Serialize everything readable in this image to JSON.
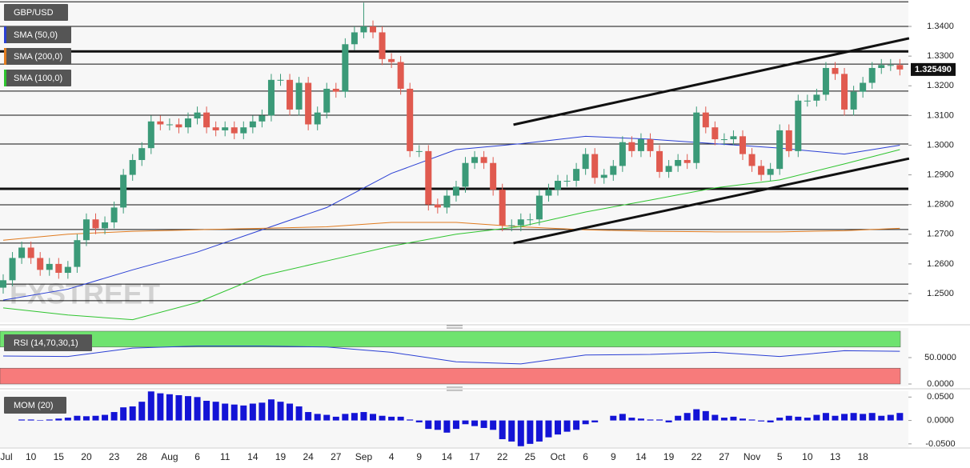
{
  "chart_data": [
    {
      "type": "candlestick",
      "title": "GBP/USD",
      "watermark": "FXSTREET",
      "categories": [
        "Jul",
        null,
        null,
        "10",
        null,
        null,
        "15",
        null,
        null,
        "20",
        null,
        null,
        "23",
        null,
        null,
        "28",
        null,
        null,
        "Aug",
        null,
        null,
        "6",
        null,
        null,
        "11",
        null,
        null,
        "14",
        null,
        null,
        "19",
        null,
        null,
        "24",
        null,
        null,
        "27",
        null,
        null,
        "Sep",
        null,
        null,
        "4",
        null,
        null,
        "9",
        null,
        null,
        "14",
        null,
        null,
        "17",
        null,
        null,
        "22",
        null,
        null,
        "25",
        null,
        null,
        "Oct",
        null,
        null,
        "6",
        null,
        null,
        "9",
        null,
        null,
        "14",
        null,
        null,
        "19",
        null,
        null,
        "22",
        null,
        null,
        "27",
        null,
        null,
        "Nov",
        null,
        null,
        "5",
        null,
        null,
        "10",
        null,
        null,
        "13",
        null,
        null,
        "18",
        null,
        null,
        null,
        null
      ],
      "open": [
        1.252,
        1.2545,
        1.262,
        1.2655,
        1.262,
        1.258,
        1.26,
        1.257,
        1.259,
        1.268,
        1.275,
        1.272,
        1.274,
        1.279,
        1.29,
        1.295,
        1.299,
        1.308,
        1.307,
        1.307,
        1.306,
        1.309,
        1.311,
        1.306,
        1.305,
        1.306,
        1.304,
        1.306,
        1.308,
        1.31,
        1.322,
        1.322,
        1.312,
        1.321,
        1.307,
        1.311,
        1.319,
        1.318,
        1.334,
        1.338,
        1.34,
        1.338,
        1.329,
        1.328,
        1.319,
        1.298,
        1.298,
        1.28,
        1.279,
        1.283,
        1.286,
        1.294,
        1.296,
        1.294,
        1.285,
        1.273,
        1.273,
        1.275,
        1.275,
        1.283,
        1.285,
        1.288,
        1.288,
        1.292,
        1.297,
        1.289,
        1.29,
        1.293,
        1.301,
        1.298,
        1.302,
        1.298,
        1.291,
        1.293,
        1.295,
        1.294,
        1.311,
        1.306,
        1.302,
        1.302,
        1.303,
        1.297,
        1.293,
        1.29,
        1.292,
        1.305,
        1.298,
        1.315,
        1.315,
        1.317,
        1.326,
        1.324,
        1.312,
        1.318,
        1.321,
        1.326,
        1.327,
        1.327
      ],
      "high": [
        1.2565,
        1.264,
        1.2675,
        1.2675,
        1.264,
        1.262,
        1.262,
        1.261,
        1.27,
        1.277,
        1.277,
        1.276,
        1.281,
        1.292,
        1.297,
        1.301,
        1.31,
        1.31,
        1.309,
        1.309,
        1.311,
        1.313,
        1.313,
        1.308,
        1.308,
        1.308,
        1.308,
        1.31,
        1.312,
        1.324,
        1.324,
        1.324,
        1.323,
        1.323,
        1.313,
        1.321,
        1.321,
        1.336,
        1.34,
        1.348,
        1.342,
        1.34,
        1.331,
        1.33,
        1.321,
        1.3,
        1.3,
        1.282,
        1.285,
        1.288,
        1.296,
        1.298,
        1.298,
        1.296,
        1.287,
        1.275,
        1.277,
        1.277,
        1.285,
        1.287,
        1.29,
        1.29,
        1.294,
        1.299,
        1.299,
        1.292,
        1.295,
        1.303,
        1.303,
        1.304,
        1.304,
        1.3,
        1.295,
        1.297,
        1.297,
        1.313,
        1.313,
        1.308,
        1.304,
        1.305,
        1.305,
        1.299,
        1.295,
        1.294,
        1.307,
        1.307,
        1.317,
        1.317,
        1.319,
        1.328,
        1.328,
        1.326,
        1.32,
        1.323,
        1.328,
        1.329,
        1.329,
        1.329
      ],
      "low": [
        1.25,
        1.2525,
        1.26,
        1.26,
        1.256,
        1.256,
        1.255,
        1.255,
        1.257,
        1.266,
        1.27,
        1.27,
        1.272,
        1.277,
        1.288,
        1.293,
        1.297,
        1.305,
        1.305,
        1.304,
        1.304,
        1.307,
        1.304,
        1.303,
        1.303,
        1.302,
        1.302,
        1.304,
        1.306,
        1.308,
        1.32,
        1.31,
        1.31,
        1.305,
        1.305,
        1.309,
        1.316,
        1.316,
        1.332,
        1.336,
        1.336,
        1.327,
        1.326,
        1.317,
        1.296,
        1.296,
        1.278,
        1.277,
        1.277,
        1.281,
        1.284,
        1.292,
        1.292,
        1.283,
        1.271,
        1.271,
        1.271,
        1.273,
        1.273,
        1.281,
        1.283,
        1.286,
        1.286,
        1.29,
        1.287,
        1.287,
        1.288,
        1.291,
        1.296,
        1.296,
        1.296,
        1.289,
        1.289,
        1.291,
        1.292,
        1.292,
        1.304,
        1.3,
        1.3,
        1.3,
        1.295,
        1.291,
        1.288,
        1.288,
        1.29,
        1.296,
        1.296,
        1.313,
        1.313,
        1.315,
        1.322,
        1.31,
        1.31,
        1.316,
        1.319,
        1.324,
        1.325,
        1.3235
      ],
      "close": [
        1.2545,
        1.262,
        1.2655,
        1.262,
        1.258,
        1.26,
        1.257,
        1.259,
        1.268,
        1.275,
        1.272,
        1.274,
        1.279,
        1.29,
        1.295,
        1.299,
        1.308,
        1.307,
        1.307,
        1.306,
        1.309,
        1.311,
        1.306,
        1.305,
        1.306,
        1.304,
        1.306,
        1.308,
        1.31,
        1.322,
        1.322,
        1.312,
        1.321,
        1.307,
        1.311,
        1.319,
        1.318,
        1.334,
        1.338,
        1.34,
        1.338,
        1.329,
        1.328,
        1.319,
        1.298,
        1.298,
        1.28,
        1.279,
        1.283,
        1.286,
        1.294,
        1.296,
        1.294,
        1.285,
        1.273,
        1.273,
        1.275,
        1.275,
        1.283,
        1.285,
        1.288,
        1.288,
        1.292,
        1.297,
        1.289,
        1.29,
        1.293,
        1.301,
        1.298,
        1.302,
        1.298,
        1.291,
        1.293,
        1.295,
        1.294,
        1.311,
        1.306,
        1.302,
        1.302,
        1.303,
        1.297,
        1.293,
        1.29,
        1.292,
        1.305,
        1.298,
        1.315,
        1.315,
        1.317,
        1.326,
        1.324,
        1.312,
        1.318,
        1.321,
        1.326,
        1.327,
        1.327,
        1.3255
      ],
      "up_color": "#3b9a78",
      "down_color": "#e05a4f",
      "series": [
        {
          "name": "SMA (50,0)",
          "color": "#2a3fd4",
          "x": [
            0,
            7,
            14,
            21,
            28,
            35,
            42,
            49,
            56,
            63,
            70,
            77,
            84,
            91,
            97
          ],
          "values": [
            1.2478,
            1.2515,
            1.258,
            1.264,
            1.2715,
            1.279,
            1.2905,
            1.2985,
            1.3005,
            1.303,
            1.302,
            1.3005,
            1.299,
            1.297,
            1.3
          ]
        },
        {
          "name": "SMA (200,0)",
          "color": "#e07b1f",
          "x": [
            0,
            7,
            14,
            21,
            28,
            35,
            42,
            49,
            56,
            63,
            70,
            77,
            84,
            91,
            97
          ],
          "values": [
            1.268,
            1.27,
            1.271,
            1.2715,
            1.272,
            1.2725,
            1.274,
            1.274,
            1.2725,
            1.2715,
            1.271,
            1.2708,
            1.2708,
            1.2712,
            1.272
          ]
        },
        {
          "name": "SMA (100,0)",
          "color": "#2fc42f",
          "x": [
            0,
            7,
            14,
            21,
            28,
            35,
            42,
            49,
            56,
            63,
            70,
            77,
            84,
            91,
            97
          ],
          "values": [
            1.2452,
            1.2428,
            1.2412,
            1.247,
            1.256,
            1.261,
            1.266,
            1.27,
            1.2726,
            1.2775,
            1.2815,
            1.2856,
            1.2883,
            1.2937,
            1.2985
          ]
        }
      ],
      "levels": [
        1.3483,
        1.34,
        1.3273,
        1.3182,
        1.3101,
        1.3004,
        1.2799,
        1.2716,
        1.267,
        1.2532,
        1.2476
      ],
      "major_levels": [
        1.3316,
        1.2853
      ],
      "trendlines": [
        {
          "x": [
            55.2,
            98
          ],
          "y": [
            1.3069,
            1.336
          ]
        },
        {
          "x": [
            55.2,
            98
          ],
          "y": [
            1.267,
            1.2955
          ]
        }
      ],
      "last": {
        "value": 1.32549,
        "label": "1.325490"
      },
      "ylim": [
        1.2403,
        1.3489
      ],
      "yticks": [
        {
          "value": 1.34,
          "label": "1.3400"
        },
        {
          "value": 1.33,
          "label": "1.3300"
        },
        {
          "value": 1.32,
          "label": "1.3200"
        },
        {
          "value": 1.31,
          "label": "1.3100"
        },
        {
          "value": 1.3,
          "label": "1.3000"
        },
        {
          "value": 1.29,
          "label": "1.2900"
        },
        {
          "value": 1.28,
          "label": "1.2800"
        },
        {
          "value": 1.27,
          "label": "1.2700"
        },
        {
          "value": 1.26,
          "label": "1.2600"
        },
        {
          "value": 1.25,
          "label": "1.2500"
        }
      ]
    },
    {
      "type": "line",
      "title": "RSI (14,70,30,1)",
      "color": "#2a3fd4",
      "x": [
        0,
        7,
        14,
        21,
        28,
        35,
        42,
        49,
        56,
        63,
        70,
        77,
        84,
        91,
        97
      ],
      "values": [
        53,
        52,
        68,
        72,
        72,
        70,
        60,
        42,
        38,
        55,
        56,
        60,
        52,
        63,
        62
      ],
      "bands": [
        {
          "from": 70,
          "to": 100,
          "color": "#6fe36f"
        },
        {
          "from": 0,
          "to": 30,
          "color": "#f77b7b"
        }
      ],
      "ylim": [
        0,
        100
      ],
      "yticks": [
        {
          "value": 50,
          "label": "50.0000"
        },
        {
          "value": 0,
          "label": "0.0000"
        }
      ]
    },
    {
      "type": "bar",
      "title": "MOM (20)",
      "color": "#1414d6",
      "values": [
        0.0,
        0.0,
        0.002,
        0.002,
        0.001,
        0.002,
        0.004,
        0.006,
        0.01,
        0.009,
        0.01,
        0.012,
        0.018,
        0.028,
        0.03,
        0.04,
        0.062,
        0.058,
        0.056,
        0.054,
        0.052,
        0.05,
        0.042,
        0.04,
        0.036,
        0.034,
        0.032,
        0.036,
        0.038,
        0.045,
        0.04,
        0.036,
        0.03,
        0.018,
        0.014,
        0.012,
        0.008,
        0.014,
        0.016,
        0.018,
        0.014,
        0.01,
        0.008,
        0.008,
        0.002,
        -0.004,
        -0.018,
        -0.02,
        -0.026,
        -0.018,
        -0.008,
        -0.012,
        -0.016,
        -0.02,
        -0.04,
        -0.045,
        -0.055,
        -0.05,
        -0.045,
        -0.036,
        -0.03,
        -0.024,
        -0.02,
        -0.008,
        -0.004,
        0.0,
        0.01,
        0.014,
        0.006,
        0.004,
        0.002,
        0.002,
        -0.004,
        0.01,
        0.016,
        0.024,
        0.02,
        0.012,
        0.006,
        0.008,
        0.004,
        0.002,
        -0.002,
        -0.004,
        0.006,
        0.01,
        0.008,
        0.006,
        0.012,
        0.016,
        0.01,
        0.014,
        0.016,
        0.014,
        0.016,
        0.01,
        0.012,
        0.016
      ],
      "ylim": [
        -0.0571,
        0.0625
      ],
      "yticks": [
        {
          "value": 0.05,
          "label": "0.0500"
        },
        {
          "value": 0,
          "label": "0.0000"
        },
        {
          "value": -0.05,
          "label": "-0.0500"
        }
      ]
    }
  ]
}
